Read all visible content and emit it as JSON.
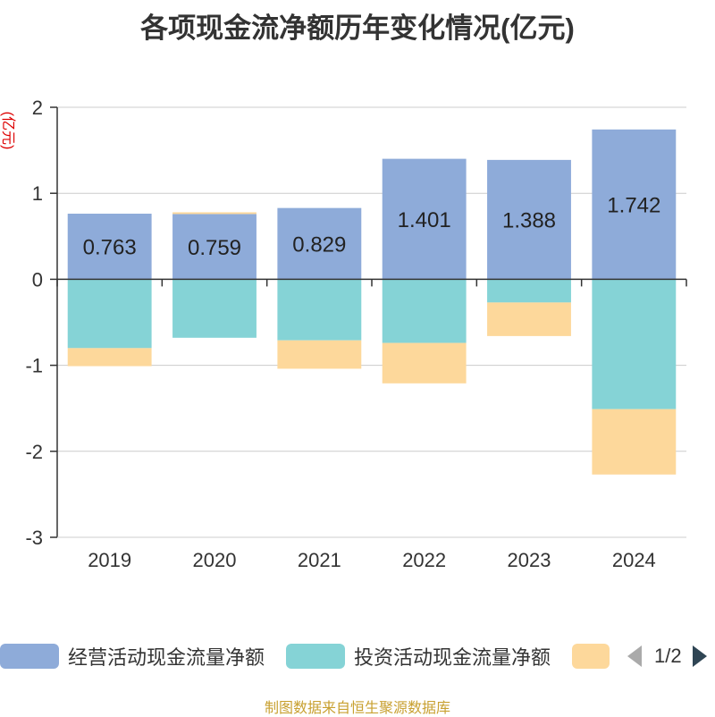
{
  "title": "各项现金流净额历年变化情况(亿元)",
  "source": "制图数据来自恒生聚源数据库",
  "colors": {
    "operating": "#8eabd9",
    "investing": "#85d3d6",
    "financing": "#fdd89b",
    "axis": "#333333",
    "grid": "#cccccc",
    "unit": "#dd0000"
  },
  "legend": {
    "items": [
      "经营活动现金流量净额",
      "投资活动现金流量净额",
      ""
    ],
    "page": "1/2"
  },
  "chart_data": {
    "type": "bar",
    "stacked": true,
    "categories": [
      "2019",
      "2020",
      "2021",
      "2022",
      "2023",
      "2024"
    ],
    "series": [
      {
        "name": "经营活动现金流量净额",
        "values": [
          0.763,
          0.759,
          0.829,
          1.401,
          1.388,
          1.742
        ],
        "labels": [
          "0.763",
          "0.759",
          "0.829",
          "1.401",
          "1.388",
          "1.742"
        ]
      },
      {
        "name": "投资活动现金流量净额",
        "values": [
          -0.8,
          -0.68,
          -0.71,
          -0.74,
          -0.27,
          -1.51
        ],
        "labels": []
      },
      {
        "values": [
          -0.21,
          0.02,
          -0.33,
          -0.47,
          -0.39,
          -0.76
        ],
        "labels": []
      }
    ],
    "ylabel": "(亿元)",
    "ylim": [
      -3,
      2
    ],
    "yticks": [
      2,
      1,
      0,
      -1,
      -2,
      -3
    ],
    "grid": true,
    "legend": "bottom"
  }
}
